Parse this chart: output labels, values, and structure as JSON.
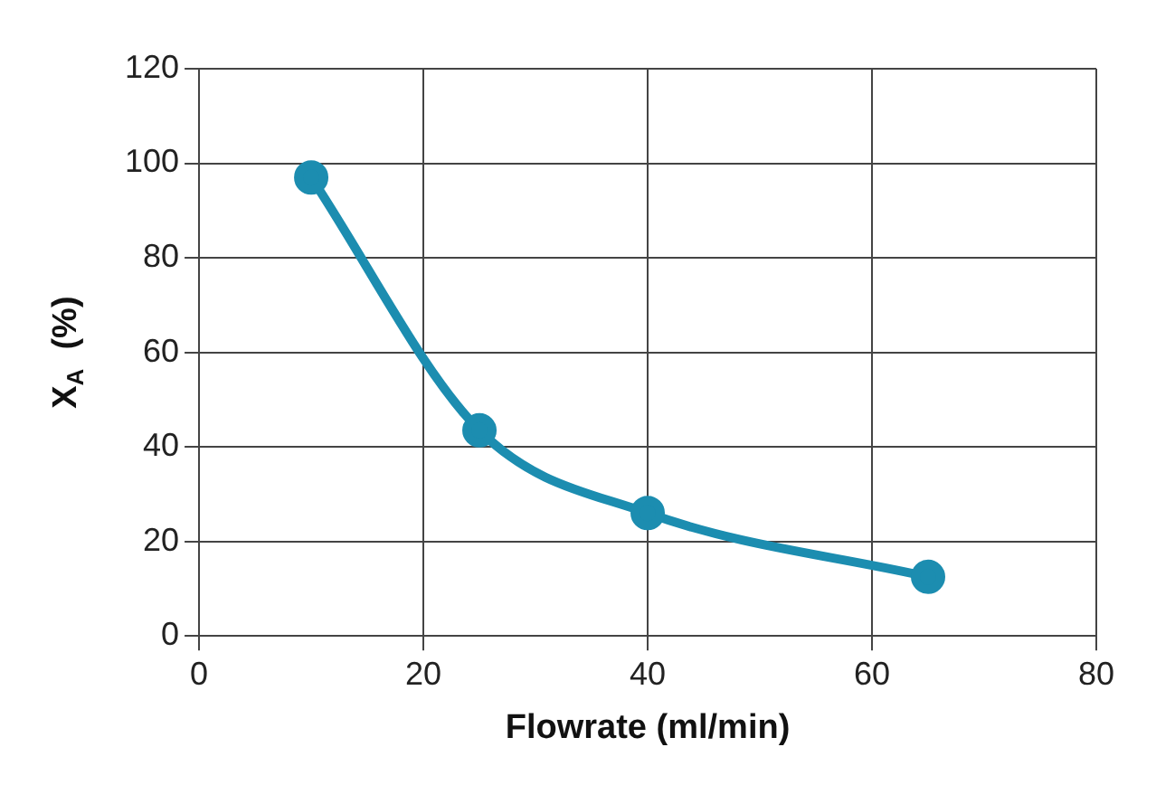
{
  "chart_data": {
    "type": "line",
    "xlabel": "Flowrate (ml/min)",
    "ylabel": "X$_{A}$  (%)",
    "series": [
      {
        "color": "#1c8db0",
        "x": [
          10,
          25,
          40,
          65
        ],
        "values": [
          97,
          43.5,
          26,
          12.5
        ]
      }
    ],
    "xlim": [
      0,
      80
    ],
    "xticks": [
      0,
      20,
      40,
      60,
      80
    ],
    "ylim": [
      0,
      120
    ],
    "yticks": [
      0,
      20,
      40,
      60,
      80,
      100,
      120
    ],
    "grid": true,
    "legend": false,
    "marker": "circle",
    "line_style": "solid"
  }
}
